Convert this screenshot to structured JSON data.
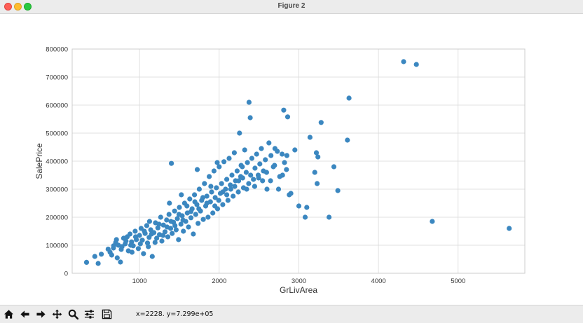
{
  "window": {
    "title": "Figure 2"
  },
  "toolbar": {
    "buttons": [
      {
        "name": "home",
        "icon": "home-icon"
      },
      {
        "name": "back",
        "icon": "arrow-left-icon"
      },
      {
        "name": "forward",
        "icon": "arrow-right-icon"
      },
      {
        "name": "pan",
        "icon": "move-icon"
      },
      {
        "name": "zoom",
        "icon": "magnifier-icon"
      },
      {
        "name": "configure-subplots",
        "icon": "sliders-icon"
      },
      {
        "name": "save",
        "icon": "floppy-disk-icon"
      }
    ],
    "coordinates": "x=2228. y=7.299e+05"
  },
  "colors": {
    "marker": "#3b87c0",
    "grid": "#d9d9d9",
    "axes_edge": "#cccccc"
  },
  "chart_data": {
    "type": "scatter",
    "xlabel": "GrLivArea",
    "ylabel": "SalePrice",
    "xlim": [
      154,
      5838
    ],
    "ylim": [
      0,
      800000
    ],
    "xticks": [
      1000,
      2000,
      3000,
      4000,
      5000
    ],
    "xtick_labels": [
      "1000",
      "2000",
      "3000",
      "4000",
      "5000"
    ],
    "yticks": [
      0,
      100000,
      200000,
      300000,
      400000,
      500000,
      600000,
      700000,
      800000
    ],
    "ytick_labels": [
      "0",
      "100000",
      "200000",
      "300000",
      "400000",
      "500000",
      "600000",
      "700000",
      "800000"
    ],
    "grid": true,
    "series": [
      {
        "points": [
          [
            334,
            39000
          ],
          [
            438,
            60000
          ],
          [
            480,
            35000
          ],
          [
            520,
            68000
          ],
          [
            605,
            86000
          ],
          [
            630,
            75000
          ],
          [
            672,
            90000
          ],
          [
            700,
            110000
          ],
          [
            720,
            55000
          ],
          [
            735,
            100000
          ],
          [
            760,
            40000
          ],
          [
            780,
            95000
          ],
          [
            800,
            125000
          ],
          [
            820,
            105000
          ],
          [
            845,
            130000
          ],
          [
            860,
            80000
          ],
          [
            880,
            140000
          ],
          [
            900,
            112000
          ],
          [
            920,
            98000
          ],
          [
            945,
            150000
          ],
          [
            960,
            120000
          ],
          [
            985,
            88000
          ],
          [
            1000,
            135000
          ],
          [
            1020,
            160000
          ],
          [
            1035,
            118000
          ],
          [
            1050,
            70000
          ],
          [
            1070,
            142000
          ],
          [
            1090,
            170000
          ],
          [
            1100,
            108000
          ],
          [
            1120,
            128000
          ],
          [
            1140,
            155000
          ],
          [
            1160,
            60000
          ],
          [
            1180,
            145000
          ],
          [
            1200,
            180000
          ],
          [
            1215,
            125000
          ],
          [
            1230,
            162000
          ],
          [
            1250,
            138000
          ],
          [
            1265,
            200000
          ],
          [
            1280,
            115000
          ],
          [
            1300,
            172000
          ],
          [
            1320,
            148000
          ],
          [
            1340,
            190000
          ],
          [
            1355,
            130000
          ],
          [
            1370,
            210000
          ],
          [
            1390,
            160000
          ],
          [
            1400,
            392000
          ],
          [
            1410,
            142000
          ],
          [
            1425,
            182000
          ],
          [
            1440,
            222000
          ],
          [
            1460,
            155000
          ],
          [
            1475,
            195000
          ],
          [
            1490,
            120000
          ],
          [
            1500,
            235000
          ],
          [
            1520,
            175000
          ],
          [
            1535,
            205000
          ],
          [
            1550,
            150000
          ],
          [
            1565,
            250000
          ],
          [
            1580,
            185000
          ],
          [
            1600,
            215000
          ],
          [
            1615,
            165000
          ],
          [
            1630,
            265000
          ],
          [
            1645,
            198000
          ],
          [
            1660,
            230000
          ],
          [
            1675,
            140000
          ],
          [
            1690,
            280000
          ],
          [
            1705,
            210000
          ],
          [
            1720,
            245000
          ],
          [
            1735,
            178000
          ],
          [
            1750,
            300000
          ],
          [
            1765,
            222000
          ],
          [
            1780,
            260000
          ],
          [
            1800,
            192000
          ],
          [
            1815,
            320000
          ],
          [
            1830,
            240000
          ],
          [
            1845,
            275000
          ],
          [
            1860,
            200000
          ],
          [
            1875,
            345000
          ],
          [
            1890,
            255000
          ],
          [
            1905,
            290000
          ],
          [
            1920,
            215000
          ],
          [
            1935,
            365000
          ],
          [
            1950,
            270000
          ],
          [
            1965,
            305000
          ],
          [
            1980,
            230000
          ],
          [
            2000,
            380000
          ],
          [
            2015,
            285000
          ],
          [
            2030,
            320000
          ],
          [
            2045,
            245000
          ],
          [
            2060,
            398000
          ],
          [
            2080,
            300000
          ],
          [
            2095,
            335000
          ],
          [
            2110,
            260000
          ],
          [
            2125,
            410000
          ],
          [
            2140,
            315000
          ],
          [
            2160,
            350000
          ],
          [
            2175,
            275000
          ],
          [
            2190,
            430000
          ],
          [
            2205,
            330000
          ],
          [
            2225,
            365000
          ],
          [
            2240,
            290000
          ],
          [
            2255,
            500000
          ],
          [
            2270,
            345000
          ],
          [
            2290,
            380000
          ],
          [
            2305,
            305000
          ],
          [
            2320,
            440000
          ],
          [
            2340,
            360000
          ],
          [
            2355,
            395000
          ],
          [
            2370,
            320000
          ],
          [
            2375,
            610000
          ],
          [
            2390,
            555000
          ],
          [
            2410,
            410000
          ],
          [
            2430,
            335000
          ],
          [
            2450,
            375000
          ],
          [
            2470,
            425000
          ],
          [
            2490,
            350000
          ],
          [
            2510,
            390000
          ],
          [
            2530,
            445000
          ],
          [
            2555,
            365000
          ],
          [
            2580,
            405000
          ],
          [
            2600,
            300000
          ],
          [
            2625,
            465000
          ],
          [
            2650,
            420000
          ],
          [
            2680,
            380000
          ],
          [
            2700,
            445000
          ],
          [
            2730,
            435000
          ],
          [
            2760,
            345000
          ],
          [
            2790,
            425000
          ],
          [
            2810,
            582000
          ],
          [
            2820,
            395000
          ],
          [
            2850,
            420000
          ],
          [
            2860,
            558000
          ],
          [
            2880,
            280000
          ],
          [
            2900,
            285000
          ],
          [
            2950,
            440000
          ],
          [
            3000,
            240000
          ],
          [
            3080,
            200000
          ],
          [
            3100,
            235000
          ],
          [
            3140,
            485000
          ],
          [
            3200,
            360000
          ],
          [
            3220,
            430000
          ],
          [
            3230,
            320000
          ],
          [
            3240,
            415000
          ],
          [
            3280,
            538000
          ],
          [
            3380,
            200000
          ],
          [
            3440,
            380000
          ],
          [
            3490,
            295000
          ],
          [
            3610,
            475000
          ],
          [
            3630,
            625000
          ],
          [
            4316,
            755000
          ],
          [
            4476,
            745000
          ],
          [
            4676,
            185000
          ],
          [
            5642,
            160000
          ],
          [
            650,
            65000
          ],
          [
            710,
            120000
          ],
          [
            770,
            85000
          ],
          [
            830,
            115000
          ],
          [
            890,
            100000
          ],
          [
            950,
            130000
          ],
          [
            1010,
            105000
          ],
          [
            1060,
            150000
          ],
          [
            1110,
            95000
          ],
          [
            1150,
            140000
          ],
          [
            1195,
            110000
          ],
          [
            1245,
            175000
          ],
          [
            1295,
            135000
          ],
          [
            1345,
            165000
          ],
          [
            1395,
            185000
          ],
          [
            1445,
            170000
          ],
          [
            1495,
            210000
          ],
          [
            1545,
            190000
          ],
          [
            1595,
            240000
          ],
          [
            1645,
            220000
          ],
          [
            1695,
            255000
          ],
          [
            1745,
            230000
          ],
          [
            1795,
            270000
          ],
          [
            1845,
            250000
          ],
          [
            1895,
            310000
          ],
          [
            1945,
            240000
          ],
          [
            1995,
            260000
          ],
          [
            2045,
            290000
          ],
          [
            2095,
            280000
          ],
          [
            2145,
            300000
          ],
          [
            2195,
            310000
          ],
          [
            2245,
            330000
          ],
          [
            2295,
            340000
          ],
          [
            2345,
            300000
          ],
          [
            2395,
            350000
          ],
          [
            2445,
            310000
          ],
          [
            2495,
            340000
          ],
          [
            2545,
            330000
          ],
          [
            2595,
            360000
          ],
          [
            2645,
            330000
          ],
          [
            2695,
            385000
          ],
          [
            2745,
            300000
          ],
          [
            2795,
            350000
          ],
          [
            2845,
            370000
          ],
          [
            675,
            98000
          ],
          [
            905,
            75000
          ],
          [
            1125,
            185000
          ],
          [
            1375,
            250000
          ],
          [
            1525,
            280000
          ],
          [
            1725,
            370000
          ],
          [
            1975,
            395000
          ],
          [
            2275,
            385000
          ]
        ]
      }
    ]
  }
}
